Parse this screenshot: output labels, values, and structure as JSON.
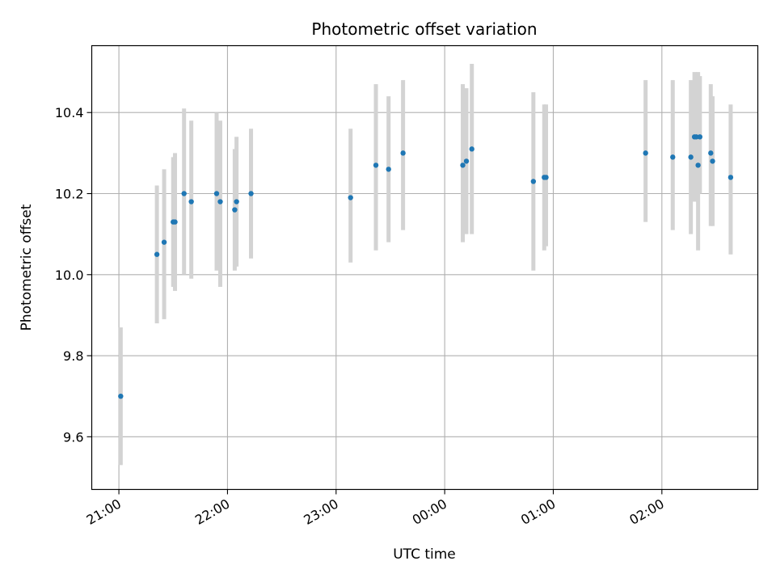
{
  "chart_data": {
    "type": "scatter",
    "title": "Photometric offset variation",
    "xlabel": "UTC time",
    "ylabel": "Photometric offset",
    "x_axis": {
      "type": "time",
      "start": "20:45",
      "end": "02:53",
      "ticks": [
        "21:00",
        "22:00",
        "23:00",
        "00:00",
        "01:00",
        "02:00"
      ],
      "tick_rotation_deg": 30
    },
    "y_axis": {
      "range": [
        9.47,
        10.565
      ],
      "ticks": [
        9.6,
        9.8,
        10.0,
        10.2,
        10.4
      ]
    },
    "grid": true,
    "colors": {
      "point": "#1f77b4",
      "errorbar": "#d3d3d3",
      "grid": "#b0b0b0"
    },
    "points": [
      {
        "t": "21:01",
        "y": 9.7,
        "lo": 9.53,
        "hi": 9.87
      },
      {
        "t": "21:21",
        "y": 10.05,
        "lo": 9.88,
        "hi": 10.22
      },
      {
        "t": "21:25",
        "y": 10.08,
        "lo": 9.89,
        "hi": 10.26
      },
      {
        "t": "21:30",
        "y": 10.13,
        "lo": 9.97,
        "hi": 10.29
      },
      {
        "t": "21:31",
        "y": 10.13,
        "lo": 9.96,
        "hi": 10.3
      },
      {
        "t": "21:36",
        "y": 10.2,
        "lo": 10.0,
        "hi": 10.41
      },
      {
        "t": "21:40",
        "y": 10.18,
        "lo": 9.99,
        "hi": 10.38
      },
      {
        "t": "21:54",
        "y": 10.2,
        "lo": 10.01,
        "hi": 10.4
      },
      {
        "t": "21:56",
        "y": 10.18,
        "lo": 9.97,
        "hi": 10.38
      },
      {
        "t": "22:04",
        "y": 10.16,
        "lo": 10.01,
        "hi": 10.31
      },
      {
        "t": "22:05",
        "y": 10.18,
        "lo": 10.02,
        "hi": 10.34
      },
      {
        "t": "22:13",
        "y": 10.2,
        "lo": 10.04,
        "hi": 10.36
      },
      {
        "t": "23:08",
        "y": 10.19,
        "lo": 10.03,
        "hi": 10.36
      },
      {
        "t": "23:22",
        "y": 10.27,
        "lo": 10.06,
        "hi": 10.47
      },
      {
        "t": "23:29",
        "y": 10.26,
        "lo": 10.08,
        "hi": 10.44
      },
      {
        "t": "23:37",
        "y": 10.3,
        "lo": 10.11,
        "hi": 10.48
      },
      {
        "t": "00:10",
        "y": 10.27,
        "lo": 10.08,
        "hi": 10.47
      },
      {
        "t": "00:12",
        "y": 10.28,
        "lo": 10.1,
        "hi": 10.46
      },
      {
        "t": "00:15",
        "y": 10.31,
        "lo": 10.1,
        "hi": 10.52
      },
      {
        "t": "00:49",
        "y": 10.23,
        "lo": 10.01,
        "hi": 10.45
      },
      {
        "t": "00:55",
        "y": 10.24,
        "lo": 10.06,
        "hi": 10.42
      },
      {
        "t": "00:56",
        "y": 10.24,
        "lo": 10.07,
        "hi": 10.42
      },
      {
        "t": "01:51",
        "y": 10.3,
        "lo": 10.13,
        "hi": 10.48
      },
      {
        "t": "02:06",
        "y": 10.29,
        "lo": 10.11,
        "hi": 10.48
      },
      {
        "t": "02:16",
        "y": 10.29,
        "lo": 10.1,
        "hi": 10.48
      },
      {
        "t": "02:18",
        "y": 10.34,
        "lo": 10.18,
        "hi": 10.5
      },
      {
        "t": "02:19",
        "y": 10.34,
        "lo": 10.18,
        "hi": 10.47
      },
      {
        "t": "02:20",
        "y": 10.27,
        "lo": 10.06,
        "hi": 10.5
      },
      {
        "t": "02:21",
        "y": 10.34,
        "lo": 10.2,
        "hi": 10.49
      },
      {
        "t": "02:27",
        "y": 10.3,
        "lo": 10.12,
        "hi": 10.47
      },
      {
        "t": "02:28",
        "y": 10.28,
        "lo": 10.12,
        "hi": 10.44
      },
      {
        "t": "02:38",
        "y": 10.24,
        "lo": 10.05,
        "hi": 10.42
      }
    ]
  }
}
